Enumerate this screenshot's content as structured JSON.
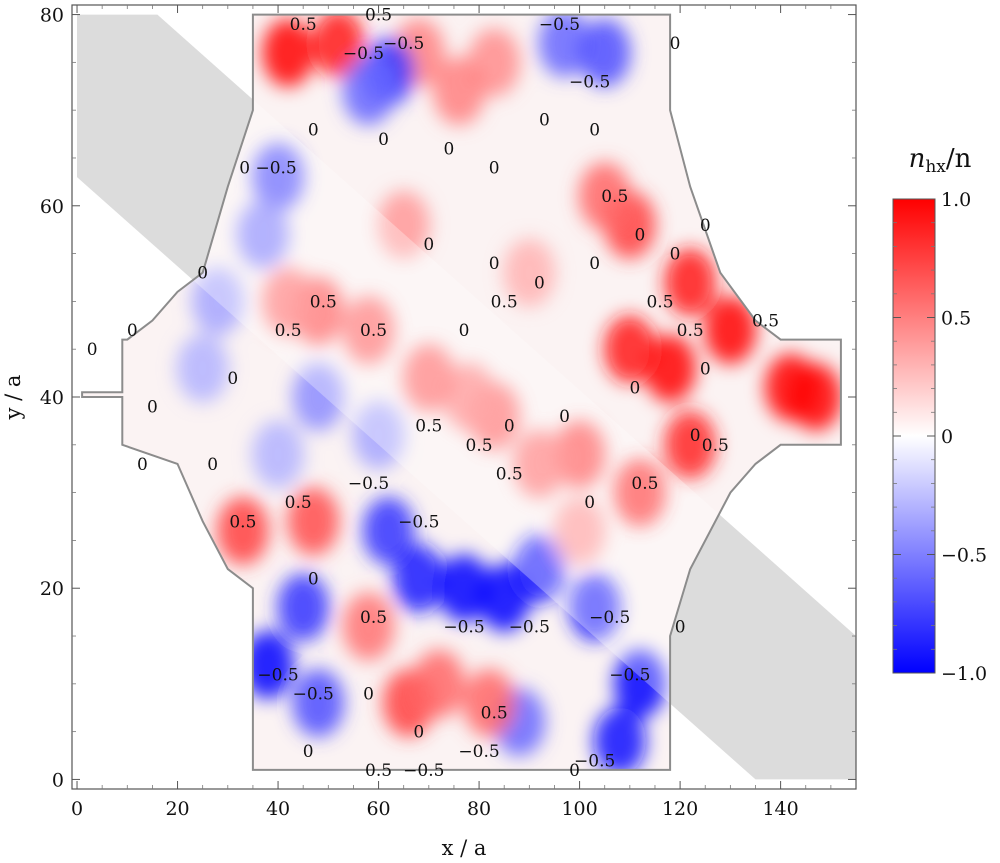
{
  "chart_data": {
    "type": "heatmap",
    "title": "",
    "xlabel": "x / a",
    "ylabel": "y / a",
    "xlim": [
      -1,
      155
    ],
    "ylim": [
      -1,
      81
    ],
    "x_ticks": [
      0,
      20,
      40,
      60,
      80,
      100,
      120,
      140
    ],
    "y_ticks": [
      0,
      20,
      40,
      60,
      80
    ],
    "colorbar": {
      "label": "n_hx/n",
      "label_main": "n",
      "label_sub": "hx",
      "label_tail": "/n",
      "range": [
        -1.0,
        1.0
      ],
      "ticks": [
        -1.0,
        -0.5,
        0,
        0.5,
        1.0
      ],
      "tick_labels": [
        "−1.0",
        "−0.5",
        "0",
        "0.5",
        "1.0"
      ],
      "colors": {
        "min": "#0000ff",
        "mid": "#ffffff",
        "max": "#ff0000"
      }
    },
    "shaded_band": {
      "color": "#dcdcdc",
      "polygon": [
        [
          0,
          80
        ],
        [
          16,
          80
        ],
        [
          155,
          15
        ],
        [
          155,
          0
        ],
        [
          135,
          0
        ],
        [
          0,
          63
        ]
      ]
    },
    "domain_outline": [
      [
        35,
        80
      ],
      [
        35,
        70
      ],
      [
        30,
        62
      ],
      [
        25,
        53
      ],
      [
        20,
        51
      ],
      [
        15,
        48
      ],
      [
        10,
        46
      ],
      [
        9,
        46
      ],
      [
        9,
        40.5
      ],
      [
        1,
        40.5
      ],
      [
        1,
        40
      ],
      [
        9,
        40
      ],
      [
        9,
        35
      ],
      [
        20,
        33
      ],
      [
        25,
        27
      ],
      [
        30,
        22
      ],
      [
        35,
        20
      ],
      [
        35,
        1
      ],
      [
        118,
        1
      ],
      [
        118,
        15
      ],
      [
        122,
        22
      ],
      [
        130,
        30
      ],
      [
        135,
        33
      ],
      [
        140,
        35
      ],
      [
        152,
        35
      ],
      [
        152,
        46
      ],
      [
        140,
        46
      ],
      [
        135,
        48
      ],
      [
        128,
        53
      ],
      [
        122,
        62
      ],
      [
        118,
        70
      ],
      [
        118,
        80
      ]
    ],
    "field_blobs": [
      {
        "x": 42,
        "y": 76,
        "value": 1.0
      },
      {
        "x": 52,
        "y": 77,
        "value": 0.9
      },
      {
        "x": 68,
        "y": 76,
        "value": 0.5
      },
      {
        "x": 83,
        "y": 75,
        "value": 0.45
      },
      {
        "x": 76,
        "y": 72,
        "value": 0.5
      },
      {
        "x": 62,
        "y": 74,
        "value": -0.8
      },
      {
        "x": 58,
        "y": 72,
        "value": -0.6
      },
      {
        "x": 97,
        "y": 77,
        "value": -0.6
      },
      {
        "x": 105,
        "y": 76,
        "value": -0.7
      },
      {
        "x": 40,
        "y": 63,
        "value": -0.7
      },
      {
        "x": 37,
        "y": 57,
        "value": -0.5
      },
      {
        "x": 110,
        "y": 58,
        "value": 0.75
      },
      {
        "x": 105,
        "y": 61,
        "value": 0.6
      },
      {
        "x": 122,
        "y": 52,
        "value": 0.9
      },
      {
        "x": 130,
        "y": 47,
        "value": 1.0
      },
      {
        "x": 142,
        "y": 41,
        "value": 1.0
      },
      {
        "x": 147,
        "y": 40,
        "value": 1.0
      },
      {
        "x": 118,
        "y": 43,
        "value": 1.0
      },
      {
        "x": 110,
        "y": 45,
        "value": 0.9
      },
      {
        "x": 122,
        "y": 35,
        "value": 0.85
      },
      {
        "x": 112,
        "y": 30,
        "value": 0.8
      },
      {
        "x": 100,
        "y": 34,
        "value": 0.7
      },
      {
        "x": 92,
        "y": 33,
        "value": 0.55
      },
      {
        "x": 83,
        "y": 38,
        "value": 0.6
      },
      {
        "x": 78,
        "y": 40,
        "value": 0.5
      },
      {
        "x": 70,
        "y": 42,
        "value": 0.6
      },
      {
        "x": 58,
        "y": 47,
        "value": 0.6
      },
      {
        "x": 48,
        "y": 49,
        "value": 0.7
      },
      {
        "x": 42,
        "y": 50,
        "value": 0.55
      },
      {
        "x": 65,
        "y": 58,
        "value": 0.4
      },
      {
        "x": 90,
        "y": 53,
        "value": 0.3
      },
      {
        "x": 28,
        "y": 50,
        "value": -0.35
      },
      {
        "x": 25,
        "y": 43,
        "value": -0.3
      },
      {
        "x": 48,
        "y": 40,
        "value": -0.45
      },
      {
        "x": 60,
        "y": 36,
        "value": -0.35
      },
      {
        "x": 40,
        "y": 34,
        "value": -0.3
      },
      {
        "x": 33,
        "y": 26,
        "value": 0.75
      },
      {
        "x": 47,
        "y": 27,
        "value": 0.7
      },
      {
        "x": 38,
        "y": 12,
        "value": -1.0
      },
      {
        "x": 45,
        "y": 18,
        "value": -0.8
      },
      {
        "x": 48,
        "y": 8,
        "value": -0.7
      },
      {
        "x": 62,
        "y": 26,
        "value": -0.8
      },
      {
        "x": 68,
        "y": 21,
        "value": -0.9
      },
      {
        "x": 77,
        "y": 20,
        "value": -1.0
      },
      {
        "x": 85,
        "y": 19,
        "value": -1.0
      },
      {
        "x": 92,
        "y": 22,
        "value": -0.9
      },
      {
        "x": 103,
        "y": 18,
        "value": -0.85
      },
      {
        "x": 112,
        "y": 10,
        "value": -1.0
      },
      {
        "x": 108,
        "y": 4,
        "value": -0.95
      },
      {
        "x": 88,
        "y": 6,
        "value": -0.6
      },
      {
        "x": 66,
        "y": 8,
        "value": 0.75
      },
      {
        "x": 72,
        "y": 10,
        "value": 0.6
      },
      {
        "x": 82,
        "y": 8,
        "value": 0.6
      },
      {
        "x": 58,
        "y": 16,
        "value": 0.55
      },
      {
        "x": 100,
        "y": 26,
        "value": 0.4
      }
    ],
    "contour_labels": [
      {
        "x": 45,
        "y": 79,
        "text": "0.5"
      },
      {
        "x": 60,
        "y": 80,
        "text": "0.5"
      },
      {
        "x": 57,
        "y": 76,
        "text": "−0.5"
      },
      {
        "x": 65,
        "y": 77,
        "text": "−0.5"
      },
      {
        "x": 96,
        "y": 79,
        "text": "−0.5"
      },
      {
        "x": 102,
        "y": 73,
        "text": "−0.5"
      },
      {
        "x": 119,
        "y": 77,
        "text": "0"
      },
      {
        "x": 47,
        "y": 68,
        "text": "0"
      },
      {
        "x": 38,
        "y": 64,
        "text": "0 −0.5"
      },
      {
        "x": 61,
        "y": 67,
        "text": "0"
      },
      {
        "x": 74,
        "y": 66,
        "text": "0"
      },
      {
        "x": 83,
        "y": 64,
        "text": "0"
      },
      {
        "x": 93,
        "y": 69,
        "text": "0"
      },
      {
        "x": 103,
        "y": 68,
        "text": "0"
      },
      {
        "x": 107,
        "y": 61,
        "text": "0.5"
      },
      {
        "x": 112,
        "y": 57,
        "text": "0"
      },
      {
        "x": 125,
        "y": 58,
        "text": "0"
      },
      {
        "x": 119,
        "y": 55,
        "text": "0"
      },
      {
        "x": 70,
        "y": 56,
        "text": "0"
      },
      {
        "x": 83,
        "y": 54,
        "text": "0"
      },
      {
        "x": 92,
        "y": 52,
        "text": "0"
      },
      {
        "x": 103,
        "y": 54,
        "text": "0"
      },
      {
        "x": 116,
        "y": 50,
        "text": "0.5"
      },
      {
        "x": 122,
        "y": 47,
        "text": "0.5"
      },
      {
        "x": 137,
        "y": 48,
        "text": "0.5"
      },
      {
        "x": 25,
        "y": 53,
        "text": "0"
      },
      {
        "x": 42,
        "y": 47,
        "text": "0.5"
      },
      {
        "x": 49,
        "y": 50,
        "text": "0.5"
      },
      {
        "x": 59,
        "y": 47,
        "text": "0.5"
      },
      {
        "x": 85,
        "y": 50,
        "text": "0.5"
      },
      {
        "x": 77,
        "y": 47,
        "text": "0"
      },
      {
        "x": 3,
        "y": 45,
        "text": "0"
      },
      {
        "x": 11,
        "y": 47,
        "text": "0"
      },
      {
        "x": 31,
        "y": 42,
        "text": "0"
      },
      {
        "x": 15,
        "y": 39,
        "text": "0"
      },
      {
        "x": 111,
        "y": 41,
        "text": "0"
      },
      {
        "x": 125,
        "y": 43,
        "text": "0"
      },
      {
        "x": 97,
        "y": 38,
        "text": "0"
      },
      {
        "x": 70,
        "y": 37,
        "text": "0.5"
      },
      {
        "x": 86,
        "y": 37,
        "text": "0"
      },
      {
        "x": 80,
        "y": 35,
        "text": "0.5"
      },
      {
        "x": 86,
        "y": 32,
        "text": "0.5"
      },
      {
        "x": 123,
        "y": 36,
        "text": "0"
      },
      {
        "x": 127,
        "y": 35,
        "text": "0.5"
      },
      {
        "x": 113,
        "y": 31,
        "text": "0.5"
      },
      {
        "x": 27,
        "y": 33,
        "text": "0"
      },
      {
        "x": 13,
        "y": 33,
        "text": "0"
      },
      {
        "x": 44,
        "y": 29,
        "text": "0.5"
      },
      {
        "x": 58,
        "y": 31,
        "text": "−0.5"
      },
      {
        "x": 68,
        "y": 27,
        "text": "−0.5"
      },
      {
        "x": 102,
        "y": 29,
        "text": "0"
      },
      {
        "x": 33,
        "y": 27,
        "text": "0.5"
      },
      {
        "x": 47,
        "y": 21,
        "text": "0"
      },
      {
        "x": 59,
        "y": 17,
        "text": "0.5"
      },
      {
        "x": 77,
        "y": 16,
        "text": "−0.5"
      },
      {
        "x": 90,
        "y": 16,
        "text": "−0.5"
      },
      {
        "x": 106,
        "y": 17,
        "text": "−0.5"
      },
      {
        "x": 120,
        "y": 16,
        "text": "0"
      },
      {
        "x": 40,
        "y": 11,
        "text": "−0.5"
      },
      {
        "x": 47,
        "y": 9,
        "text": "−0.5"
      },
      {
        "x": 58,
        "y": 9,
        "text": "0"
      },
      {
        "x": 110,
        "y": 11,
        "text": "−0.5"
      },
      {
        "x": 83,
        "y": 7,
        "text": "0.5"
      },
      {
        "x": 68,
        "y": 5,
        "text": "0"
      },
      {
        "x": 46,
        "y": 3,
        "text": "0"
      },
      {
        "x": 60,
        "y": 1,
        "text": "0.5"
      },
      {
        "x": 69,
        "y": 1,
        "text": "−0.5"
      },
      {
        "x": 80,
        "y": 3,
        "text": "−0.5"
      },
      {
        "x": 99,
        "y": 1,
        "text": "0"
      },
      {
        "x": 103,
        "y": 2,
        "text": "−0.5"
      }
    ]
  }
}
